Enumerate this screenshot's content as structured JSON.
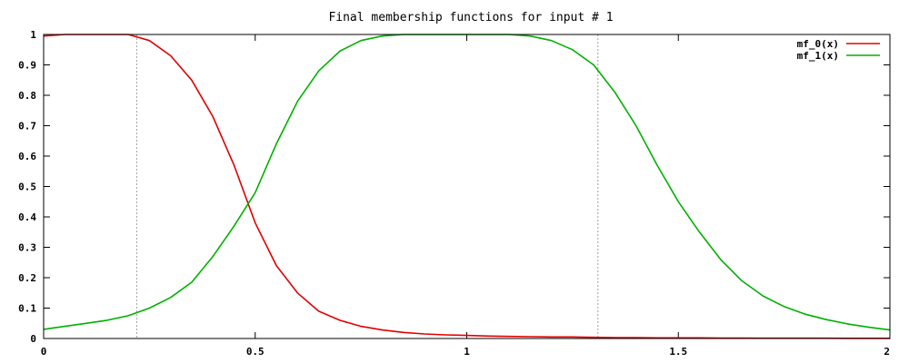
{
  "chart_data": {
    "type": "line",
    "title": "Final membership functions for input # 1",
    "xlabel": "",
    "ylabel": "",
    "xlim": [
      0,
      2
    ],
    "ylim": [
      0,
      1
    ],
    "grid": false,
    "legend_position": "top-right",
    "x_ticks": [
      {
        "value": 0,
        "label": "0"
      },
      {
        "value": 0.5,
        "label": "0.5"
      },
      {
        "value": 1,
        "label": "1"
      },
      {
        "value": 1.5,
        "label": "1.5"
      },
      {
        "value": 2,
        "label": "2"
      }
    ],
    "y_ticks": [
      {
        "value": 0,
        "label": "0"
      },
      {
        "value": 0.1,
        "label": "0.1"
      },
      {
        "value": 0.2,
        "label": "0.2"
      },
      {
        "value": 0.3,
        "label": "0.3"
      },
      {
        "value": 0.4,
        "label": "0.4"
      },
      {
        "value": 0.5,
        "label": "0.5"
      },
      {
        "value": 0.6,
        "label": "0.6"
      },
      {
        "value": 0.7,
        "label": "0.7"
      },
      {
        "value": 0.8,
        "label": "0.8"
      },
      {
        "value": 0.9,
        "label": "0.9"
      },
      {
        "value": 1,
        "label": "1"
      }
    ],
    "reference_lines_x": [
      0.22,
      1.31
    ],
    "x": [
      0,
      0.05,
      0.1,
      0.15,
      0.2,
      0.25,
      0.3,
      0.35,
      0.4,
      0.45,
      0.5,
      0.55,
      0.6,
      0.65,
      0.7,
      0.75,
      0.8,
      0.85,
      0.9,
      0.95,
      1.0,
      1.05,
      1.1,
      1.15,
      1.2,
      1.25,
      1.3,
      1.35,
      1.4,
      1.45,
      1.5,
      1.55,
      1.6,
      1.65,
      1.7,
      1.75,
      1.8,
      1.85,
      1.9,
      1.95,
      2.0
    ],
    "series": [
      {
        "name": "mf_0(x)",
        "color": "#e00000",
        "values": [
          0.995,
          1.0,
          1.0,
          1.0,
          1.0,
          0.98,
          0.93,
          0.85,
          0.73,
          0.57,
          0.38,
          0.24,
          0.15,
          0.09,
          0.06,
          0.04,
          0.028,
          0.02,
          0.015,
          0.012,
          0.01,
          0.008,
          0.007,
          0.006,
          0.005,
          0.005,
          0.004,
          0.003,
          0.003,
          0.002,
          0.002,
          0.002,
          0.0015,
          0.0012,
          0.001,
          0.001,
          0.001,
          0.0008,
          0.0007,
          0.0006,
          0.0005
        ]
      },
      {
        "name": "mf_1(x)",
        "color": "#00b000",
        "values": [
          0.03,
          0.04,
          0.05,
          0.06,
          0.075,
          0.1,
          0.135,
          0.185,
          0.27,
          0.37,
          0.48,
          0.64,
          0.78,
          0.88,
          0.945,
          0.98,
          0.995,
          1.0,
          1.0,
          1.0,
          1.0,
          1.0,
          1.0,
          0.995,
          0.98,
          0.95,
          0.9,
          0.81,
          0.7,
          0.57,
          0.45,
          0.35,
          0.26,
          0.19,
          0.14,
          0.105,
          0.08,
          0.062,
          0.048,
          0.037,
          0.028
        ]
      }
    ]
  }
}
